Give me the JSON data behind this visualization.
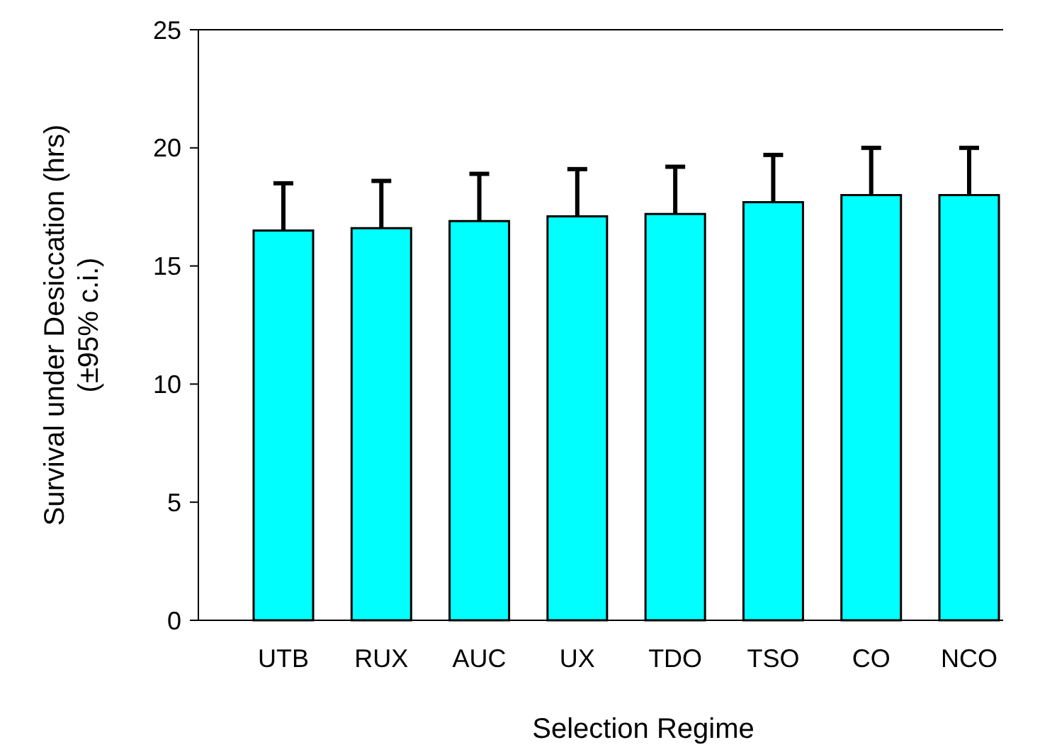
{
  "chart_data": {
    "type": "bar",
    "xlabel": "Selection Regime",
    "ylabel": "Survival under Desiccation (hrs)\n(±95% c.i.)",
    "categories": [
      "UTB",
      "RUX",
      "AUC",
      "UX",
      "TDO",
      "TSO",
      "CO",
      "NCO"
    ],
    "values": [
      16.5,
      16.6,
      16.9,
      17.1,
      17.2,
      17.7,
      18.0,
      18.0
    ],
    "errors": [
      2.0,
      2.0,
      2.0,
      2.0,
      2.0,
      2.0,
      2.0,
      2.0
    ],
    "color": "#00ffff",
    "ylim": [
      0,
      25
    ],
    "yticks": [
      0,
      5,
      10,
      15,
      20,
      25
    ],
    "grid": false
  }
}
